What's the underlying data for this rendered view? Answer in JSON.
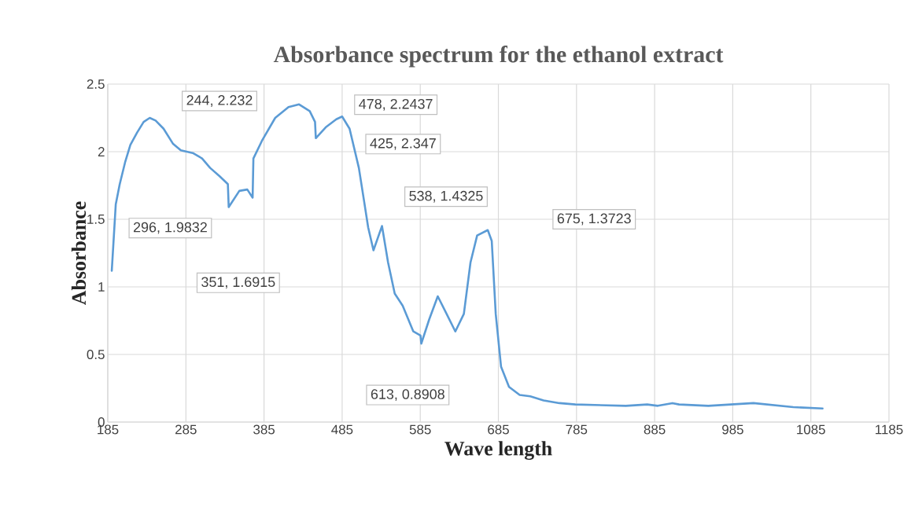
{
  "chart_data": {
    "type": "line",
    "title": "Absorbance spectrum for the ethanol extract",
    "xlabel": "Wave length",
    "ylabel": "Absorbance",
    "xlim": [
      185,
      1185
    ],
    "xticks": [
      185,
      285,
      385,
      485,
      585,
      685,
      785,
      885,
      985,
      1085,
      1185
    ],
    "ylim": [
      0,
      2.5
    ],
    "yticks": [
      0,
      0.5,
      1,
      1.5,
      2,
      2.5
    ],
    "grid": true,
    "marker": "none",
    "line_style": "solid",
    "annotations": [
      "244, 2.232",
      "478, 2.2437",
      "425, 2.347",
      "538, 1.4325",
      "675, 1.3723",
      "296, 1.9832",
      "351, 1.6915",
      "613, 0.8908"
    ],
    "series": [
      {
        "color": "#5b9bd5",
        "x": [
          190.1,
          195.2,
          200.3,
          207.1,
          213.9,
          222.4,
          230.9,
          238.7,
          246.2,
          256.4,
          268.3,
          278.5,
          293.8,
          305.7,
          316.0,
          327.9,
          338.7,
          339.8,
          353.4,
          363.6,
          370.4,
          371.4,
          382.3,
          399.3,
          416.3,
          429.9,
          443.5,
          450.3,
          451.3,
          463.9,
          477.5,
          485.0,
          494.5,
          506.4,
          513.2,
          518.3,
          525.1,
          536.0,
          543.8,
          552.3,
          562.5,
          576.1,
          585.3,
          586.3,
          596.5,
          607.4,
          618.7,
          629.9,
          640.8,
          649.3,
          657.8,
          671.4,
          676.5,
          681.6,
          688.4,
          698.6,
          712.2,
          725.8,
          742.8,
          763.2,
          783.6,
          848.2,
          875.5,
          889.1,
          907.8,
          916.3,
          953.7,
          1011.5,
          1062.5,
          1100.0
        ],
        "values": [
          1.12,
          1.61,
          1.76,
          1.92,
          2.05,
          2.14,
          2.22,
          2.25,
          2.23,
          2.17,
          2.06,
          2.01,
          1.99,
          1.95,
          1.88,
          1.82,
          1.76,
          1.59,
          1.71,
          1.72,
          1.66,
          1.95,
          2.08,
          2.25,
          2.33,
          2.35,
          2.3,
          2.22,
          2.1,
          2.18,
          2.24,
          2.26,
          2.17,
          1.88,
          1.63,
          1.44,
          1.27,
          1.45,
          1.18,
          0.95,
          0.86,
          0.67,
          0.64,
          0.58,
          0.76,
          0.93,
          0.8,
          0.67,
          0.8,
          1.18,
          1.38,
          1.42,
          1.34,
          0.8,
          0.41,
          0.26,
          0.2,
          0.19,
          0.16,
          0.14,
          0.13,
          0.12,
          0.13,
          0.12,
          0.14,
          0.13,
          0.12,
          0.14,
          0.11,
          0.1
        ]
      }
    ]
  }
}
